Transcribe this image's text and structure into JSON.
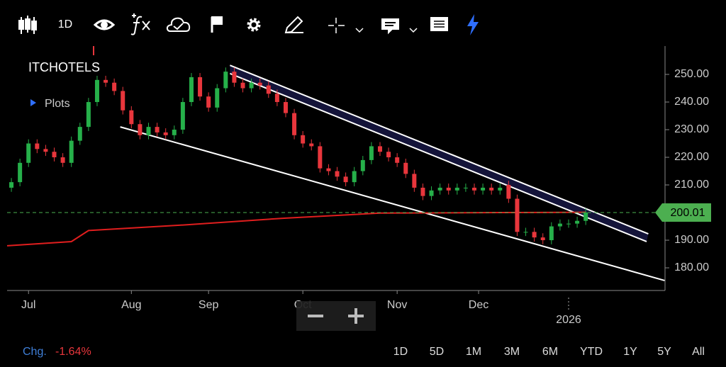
{
  "toolbar": {
    "interval": "1D"
  },
  "chart_data": {
    "type": "candlestick",
    "symbol": "ITCHOTELS",
    "plots_label": "Plots",
    "up_color": "#26b04a",
    "down_color": "#e8363c",
    "open": [
      209,
      211,
      218,
      225,
      223,
      222,
      220,
      218,
      226,
      231,
      240,
      248,
      247,
      244,
      237,
      232,
      228,
      231,
      229,
      228,
      230,
      240,
      249,
      242,
      238,
      245,
      251,
      247,
      245,
      247,
      246,
      243,
      240,
      236,
      228,
      225,
      224,
      216,
      215,
      213,
      211,
      215,
      219,
      224,
      222,
      220,
      218,
      214,
      209,
      206,
      208,
      209,
      208,
      209,
      209,
      208,
      209,
      208,
      210,
      205,
      193,
      193,
      191,
      190,
      195,
      196,
      196,
      197
    ],
    "high": [
      212.5,
      219.5,
      226.5,
      226.5,
      224.5,
      223.5,
      221.5,
      227.5,
      232.5,
      241.5,
      249.5,
      249.5,
      248.5,
      245.5,
      238.5,
      233.5,
      232.5,
      232.5,
      230.5,
      231.5,
      241.5,
      250.5,
      250.5,
      243.5,
      246.5,
      252.5,
      252.5,
      248.5,
      248.5,
      248.5,
      247.5,
      244.5,
      241.5,
      237.5,
      229.5,
      226.5,
      225.5,
      217.5,
      216.5,
      214.5,
      216.5,
      220.5,
      225.5,
      225.5,
      223.5,
      221.5,
      219.5,
      215.5,
      210.5,
      209.5,
      210.5,
      210.5,
      210.5,
      210.5,
      210.5,
      210.5,
      210.5,
      210.5,
      211.5,
      206.5,
      194.5,
      194.5,
      192.5,
      196.5,
      197.5,
      197.5,
      198.5,
      201.5
    ],
    "low": [
      207.5,
      209.5,
      216.5,
      221.5,
      220.5,
      218.5,
      216.5,
      216.5,
      224.5,
      229.5,
      238.5,
      245.5,
      242.5,
      235.5,
      230.5,
      226.5,
      226.5,
      227.5,
      226.5,
      226.5,
      228.5,
      238.5,
      240.5,
      236.5,
      236.5,
      243.5,
      245.5,
      243.5,
      243.5,
      244.5,
      241.5,
      238.5,
      234.5,
      226.5,
      223.5,
      222.5,
      214.5,
      213.5,
      211.5,
      209.5,
      209.5,
      213.5,
      217.5,
      220.5,
      218.5,
      216.5,
      212.5,
      207.5,
      204.5,
      204.5,
      206.5,
      206.5,
      206.5,
      207.5,
      206.5,
      206.5,
      206.5,
      206.5,
      203.5,
      191.5,
      191.5,
      189.5,
      188.5,
      188.5,
      193.5,
      194.5,
      194.5,
      195.5
    ],
    "close": [
      211,
      218,
      225,
      223,
      222,
      220,
      218,
      226,
      231,
      240,
      248,
      247,
      244,
      237,
      232,
      228,
      231,
      229,
      228,
      230,
      240,
      249,
      242,
      238,
      245,
      251,
      247,
      245,
      247,
      246,
      243,
      240,
      236,
      228,
      225,
      224,
      216,
      215,
      213,
      211,
      215,
      219,
      224,
      222,
      220,
      218,
      214,
      209,
      206,
      208,
      209,
      208,
      209,
      209,
      208,
      209,
      208,
      209,
      205,
      193,
      193,
      191,
      190,
      195,
      196,
      196,
      197,
      200.01
    ],
    "xlim": [
      -0.5,
      76
    ],
    "ylim": [
      171.8,
      260.26
    ],
    "xticks": [
      {
        "value": 2,
        "label": "Jul"
      },
      {
        "value": 14,
        "label": "Aug"
      },
      {
        "value": 23,
        "label": "Sep"
      },
      {
        "value": 34,
        "label": "Oct"
      },
      {
        "value": 45,
        "label": "Nov"
      },
      {
        "value": 54.5,
        "label": "Dec"
      }
    ],
    "year_ticks": [
      {
        "value": 65,
        "label": "2026"
      }
    ],
    "yticks": [
      {
        "value": 180,
        "label": "180.00"
      },
      {
        "value": 190,
        "label": "190.00"
      },
      {
        "value": 200,
        "label": "200.00"
      },
      {
        "value": 210,
        "label": "210.00"
      },
      {
        "value": 220,
        "label": "220.00"
      },
      {
        "value": 230,
        "label": "230.00"
      },
      {
        "value": 240,
        "label": "240.00"
      },
      {
        "value": 250,
        "label": "250.00"
      }
    ],
    "last_price": {
      "value": 200.01,
      "color": "#4caf50"
    },
    "moving_average": {
      "color": "#e01e1e",
      "x": [
        -0.5,
        7,
        9,
        20,
        32,
        43,
        57,
        67
      ],
      "values": [
        188,
        189.5,
        193.5,
        195.5,
        198,
        199.8,
        200,
        200.1
      ]
    },
    "channel": {
      "fill": "#14143a",
      "color": "#ffffff",
      "upper": {
        "x": [
          25.5,
          74.3
        ],
        "y": [
          253.3,
          192.3
        ]
      },
      "lower": {
        "x": [
          25.5,
          74.1
        ],
        "y": [
          250.3,
          189.5
        ]
      }
    },
    "support_line": {
      "color": "#ffffff",
      "x": [
        12.7,
        76.2
      ],
      "y": [
        231,
        175.4
      ]
    }
  },
  "footer": {
    "change_label": "Chg.",
    "change_value": "-1.64%",
    "ranges": [
      "1D",
      "5D",
      "1M",
      "3M",
      "6M",
      "YTD",
      "1Y",
      "5Y",
      "All"
    ]
  }
}
